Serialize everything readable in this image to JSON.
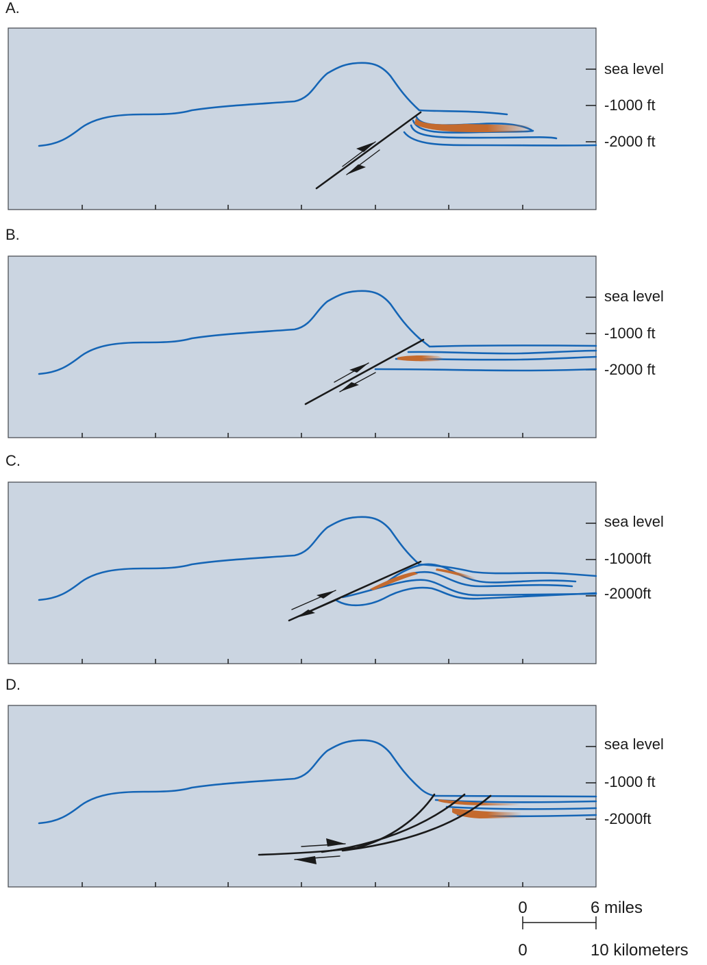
{
  "panels": [
    {
      "letter": "A.",
      "depth_labels": [
        "sea level",
        "-1000 ft",
        "-2000 ft"
      ]
    },
    {
      "letter": "B.",
      "depth_labels": [
        "sea level",
        "-1000 ft",
        "-2000 ft"
      ]
    },
    {
      "letter": "C.",
      "depth_labels": [
        "sea level",
        "-1000ft",
        "-2000ft"
      ]
    },
    {
      "letter": "D.",
      "depth_labels": [
        "sea level",
        "-1000 ft",
        "-2000ft"
      ]
    }
  ],
  "scale_bar": {
    "top_zero": "0",
    "top_value": "6 miles",
    "bottom_zero": "0",
    "bottom_value": "10 kilometers"
  },
  "colors": {
    "panel_background": "#cbd5e1",
    "strata_line": "#1565b5",
    "fault_line": "#1a1a1a",
    "deposit": "#c46a2e"
  }
}
